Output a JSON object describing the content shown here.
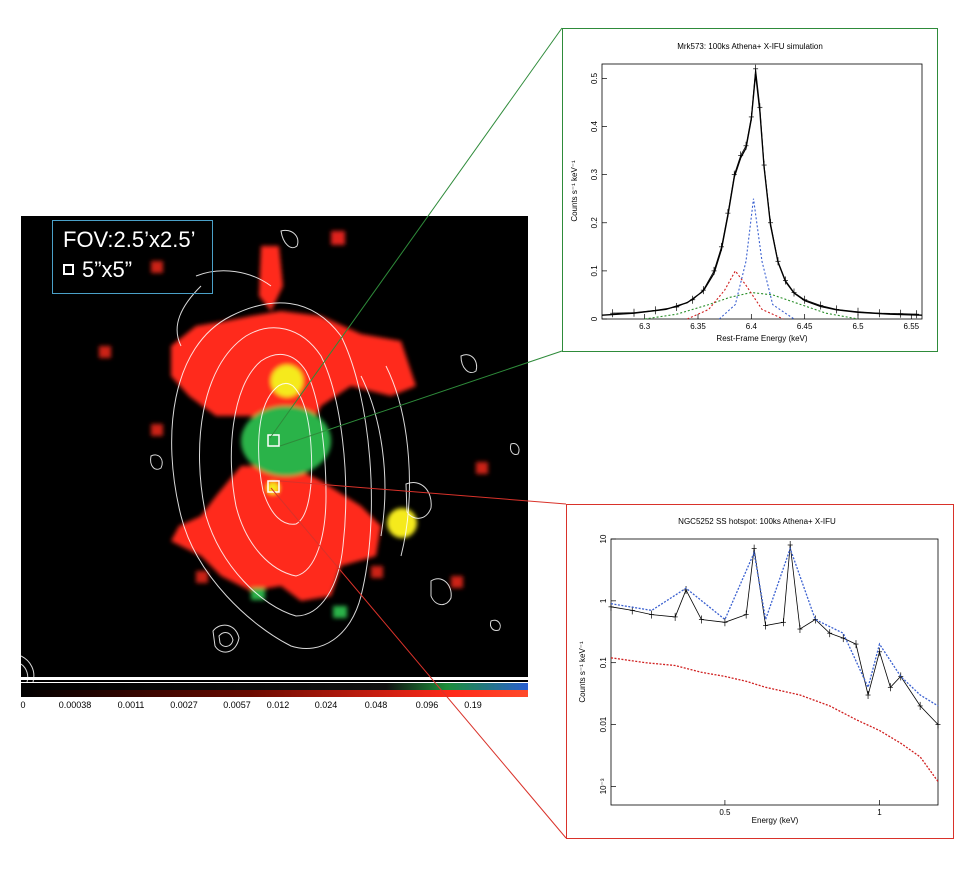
{
  "image": {
    "fov_label": "FOV:2.5’x2.5’",
    "pixel_label": "5”x5”",
    "colorbar_ticks": [
      "0",
      "0.00038",
      "0.0011",
      "0.0027",
      "0.0057",
      "0.012",
      "0.024",
      "0.048",
      "0.096",
      "0.19"
    ],
    "colors": {
      "red": "#ff2a1a",
      "green": "#29b34a",
      "yellow": "#f5ea1e",
      "contour": "#ffffff"
    }
  },
  "chart_data": [
    {
      "type": "line",
      "title": "Mrk573: 100ks Athena+ X-IFU simulation",
      "xlabel": "Rest-Frame Energy (keV)",
      "ylabel": "Counts s⁻¹ keV⁻¹",
      "xlim": [
        6.26,
        6.56
      ],
      "ylim": [
        0,
        0.53
      ],
      "xticks": [
        6.3,
        6.35,
        6.4,
        6.45,
        6.5,
        6.55
      ],
      "xtick_labels": [
        "6.3",
        "6.35",
        "6.4",
        "6.45",
        "6.5",
        "6.55"
      ],
      "yticks": [
        0,
        0.1,
        0.2,
        0.3,
        0.4,
        0.5
      ],
      "ytick_labels": [
        "0",
        "0.1",
        "0.2",
        "0.3",
        "0.4",
        "0.5"
      ],
      "series": [
        {
          "style": "data",
          "x": [
            6.27,
            6.29,
            6.31,
            6.33,
            6.345,
            6.355,
            6.365,
            6.372,
            6.378,
            6.384,
            6.39,
            6.395,
            6.4,
            6.404,
            6.408,
            6.412,
            6.418,
            6.425,
            6.432,
            6.44,
            6.45,
            6.465,
            6.48,
            6.5,
            6.52,
            6.54,
            6.555
          ],
          "y": [
            0.012,
            0.013,
            0.018,
            0.025,
            0.04,
            0.06,
            0.1,
            0.15,
            0.22,
            0.3,
            0.34,
            0.36,
            0.42,
            0.52,
            0.44,
            0.32,
            0.2,
            0.12,
            0.08,
            0.055,
            0.04,
            0.028,
            0.02,
            0.015,
            0.012,
            0.011,
            0.01
          ]
        },
        {
          "style": "model",
          "x": [
            6.26,
            6.29,
            6.32,
            6.34,
            6.355,
            6.365,
            6.372,
            6.378,
            6.384,
            6.39,
            6.395,
            6.4,
            6.404,
            6.408,
            6.412,
            6.418,
            6.425,
            6.432,
            6.44,
            6.45,
            6.465,
            6.48,
            6.5,
            6.53,
            6.56
          ],
          "y": [
            0.008,
            0.012,
            0.02,
            0.034,
            0.058,
            0.095,
            0.145,
            0.215,
            0.295,
            0.335,
            0.355,
            0.415,
            0.51,
            0.43,
            0.315,
            0.195,
            0.118,
            0.078,
            0.054,
            0.038,
            0.026,
            0.019,
            0.014,
            0.01,
            0.008
          ]
        },
        {
          "style": "component",
          "color": "#2a8f2a",
          "x": [
            6.3,
            6.33,
            6.36,
            6.38,
            6.4,
            6.42,
            6.44,
            6.47,
            6.5
          ],
          "y": [
            0.0,
            0.01,
            0.03,
            0.045,
            0.055,
            0.05,
            0.035,
            0.012,
            0.0
          ]
        },
        {
          "style": "component",
          "color": "#d02020",
          "x": [
            6.34,
            6.36,
            6.375,
            6.385,
            6.395,
            6.41,
            6.43
          ],
          "y": [
            0.0,
            0.02,
            0.06,
            0.1,
            0.07,
            0.02,
            0.0
          ]
        },
        {
          "style": "component",
          "color": "#3a60d0",
          "x": [
            6.37,
            6.385,
            6.395,
            6.402,
            6.41,
            6.42,
            6.44
          ],
          "y": [
            0.0,
            0.03,
            0.12,
            0.25,
            0.12,
            0.03,
            0.0
          ]
        }
      ]
    },
    {
      "type": "line",
      "title": "NGC5252 SS hotspot: 100ks Athena+ X-IFU",
      "xlabel": "Energy (keV)",
      "ylabel": "Counts s⁻¹ keV⁻¹",
      "xscale": "log",
      "yscale": "log",
      "xlim": [
        0.3,
        1.3
      ],
      "ylim": [
        0.0005,
        10
      ],
      "xticks": [
        0.5,
        1
      ],
      "xtick_labels": [
        "0.5",
        "1"
      ],
      "yticks": [
        10,
        1,
        0.1,
        0.01,
        0.001
      ],
      "ytick_labels": [
        "10",
        "1",
        "0.1",
        "0.01",
        "10⁻³"
      ],
      "series": [
        {
          "style": "data",
          "color": "#000000",
          "x": [
            0.3,
            0.33,
            0.36,
            0.4,
            0.42,
            0.45,
            0.5,
            0.55,
            0.57,
            0.6,
            0.65,
            0.67,
            0.7,
            0.75,
            0.8,
            0.85,
            0.9,
            0.95,
            1.0,
            1.05,
            1.1,
            1.2,
            1.3
          ],
          "y": [
            0.8,
            0.7,
            0.6,
            0.55,
            1.5,
            0.5,
            0.45,
            0.6,
            7,
            0.4,
            0.45,
            8,
            0.35,
            0.5,
            0.3,
            0.25,
            0.2,
            0.03,
            0.15,
            0.04,
            0.06,
            0.02,
            0.01
          ]
        },
        {
          "style": "model",
          "color": "#3a60d0",
          "x": [
            0.3,
            0.36,
            0.42,
            0.5,
            0.57,
            0.6,
            0.67,
            0.75,
            0.85,
            0.95,
            1.0,
            1.1,
            1.2,
            1.3
          ],
          "y": [
            0.9,
            0.7,
            1.6,
            0.5,
            6,
            0.5,
            7,
            0.5,
            0.3,
            0.04,
            0.2,
            0.06,
            0.03,
            0.02
          ]
        },
        {
          "style": "model",
          "color": "#d02020",
          "x": [
            0.3,
            0.35,
            0.4,
            0.45,
            0.5,
            0.55,
            0.6,
            0.7,
            0.8,
            0.9,
            1.0,
            1.1,
            1.2,
            1.3
          ],
          "y": [
            0.12,
            0.1,
            0.09,
            0.07,
            0.06,
            0.05,
            0.04,
            0.03,
            0.02,
            0.012,
            0.008,
            0.005,
            0.003,
            0.0012
          ]
        }
      ]
    }
  ]
}
